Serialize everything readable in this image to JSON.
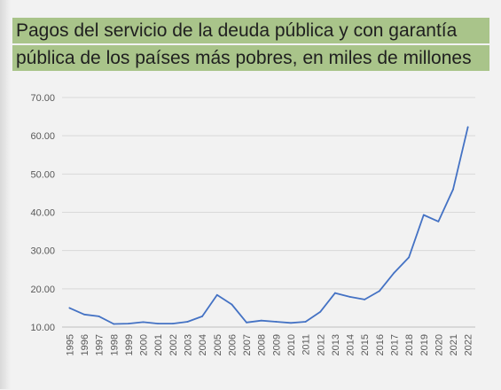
{
  "title_lines": [
    "Pagos del servicio de la deuda pública y con garantía",
    "pública de los países más pobres, en miles de millones"
  ],
  "colors": {
    "title_band": "#a9c48a",
    "line": "#4472c4",
    "background": "#f2f2f2",
    "grid": "#d9d9d9"
  },
  "chart_data": {
    "type": "line",
    "title": "Pagos del servicio de la deuda pública y con garantía pública de los países más pobres, en miles de millones",
    "xlabel": "",
    "ylabel": "",
    "x": [
      "1995",
      "1996",
      "1997",
      "1998",
      "1999",
      "2000",
      "2001",
      "2002",
      "2003",
      "2004",
      "2005",
      "2006",
      "2007",
      "2008",
      "2009",
      "2010",
      "2011",
      "2012",
      "2013",
      "2014",
      "2015",
      "2016",
      "2017",
      "2018",
      "2019",
      "2020",
      "2021",
      "2022"
    ],
    "series": [
      {
        "values": [
          15.0,
          13.3,
          12.8,
          10.8,
          10.9,
          11.3,
          10.9,
          10.9,
          11.4,
          12.8,
          18.4,
          15.9,
          11.2,
          11.7,
          11.4,
          11.1,
          11.4,
          14.0,
          18.9,
          17.9,
          17.2,
          19.4,
          24.2,
          28.2,
          39.3,
          37.6,
          46.0,
          62.3
        ]
      }
    ],
    "yticks": [
      "10.00",
      "20.00",
      "30.00",
      "40.00",
      "50.00",
      "60.00",
      "70.00"
    ],
    "ylim": [
      10,
      70
    ],
    "grid": true,
    "legend": "none"
  }
}
